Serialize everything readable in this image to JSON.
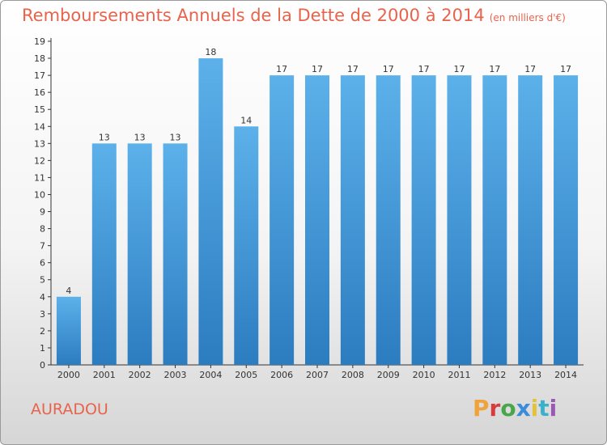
{
  "title": "Remboursements Annuels de la Dette de 2000 à 2014",
  "unit": "(en milliers d'€)",
  "location": "AURADOU",
  "brand": "Proxiti",
  "colors": {
    "title": "#e8634b",
    "bar_top": "#5cb1ea",
    "bar_bottom": "#2c7cc0",
    "axis": "#333333",
    "brand_letters": [
      "#f0a33b",
      "#d83b3b",
      "#4aa64a",
      "#3b8ddb",
      "#e2c23b",
      "#3bb0c9",
      "#9b59b6"
    ]
  },
  "chart_data": {
    "type": "bar",
    "title": "Remboursements Annuels de la Dette de 2000 à 2014",
    "subtitle": "(en milliers d'€)",
    "categories": [
      "2000",
      "2001",
      "2002",
      "2003",
      "2004",
      "2005",
      "2006",
      "2007",
      "2008",
      "2009",
      "2010",
      "2011",
      "2012",
      "2013",
      "2014"
    ],
    "values": [
      4,
      13,
      13,
      13,
      18,
      14,
      17,
      17,
      17,
      17,
      17,
      17,
      17,
      17,
      17
    ],
    "ylim": [
      0,
      19
    ],
    "yticks": [
      0,
      1,
      2,
      3,
      4,
      5,
      6,
      7,
      8,
      9,
      10,
      11,
      12,
      13,
      14,
      15,
      16,
      17,
      18,
      19
    ],
    "grid": false,
    "legend": "none",
    "data_labels": true
  }
}
